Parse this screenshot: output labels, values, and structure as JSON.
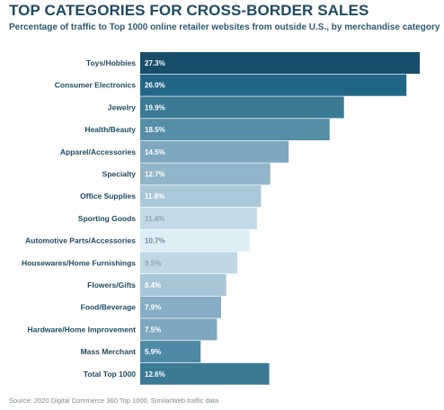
{
  "chart_data": {
    "type": "bar",
    "orientation": "horizontal",
    "title": "TOP CATEGORIES FOR CROSS-BORDER SALES",
    "subtitle": "Percentage of traffic to Top 1000 online retailer websites from outside U.S., by merchandise category",
    "categories": [
      "Toys/Hobbies",
      "Consumer Electronics",
      "Jewelry",
      "Health/Beauty",
      "Apparel/Accessories",
      "Specialty",
      "Office Supplies",
      "Sporting Goods",
      "Automotive Parts/Accessories",
      "Housewares/Home Furnishings",
      "Flowers/Gifts",
      "Food/Beverage",
      "Hardware/Home Improvement",
      "Mass Merchant",
      "Total Top 1000"
    ],
    "values": [
      27.3,
      26.0,
      19.9,
      18.5,
      14.5,
      12.7,
      11.8,
      11.4,
      10.7,
      9.5,
      8.4,
      7.9,
      7.5,
      5.9,
      12.6
    ],
    "value_labels": [
      "27.3%",
      "26.0%",
      "19.9%",
      "18.5%",
      "14.5%",
      "12.7%",
      "11.8%",
      "11.4%",
      "10.7%",
      "9.5%",
      "8.4%",
      "7.9%",
      "7.5%",
      "5.9%",
      "12.6%"
    ],
    "xlim": [
      0,
      27.3
    ],
    "grid": false,
    "legend": "none",
    "bar_colors": [
      "#174c6a",
      "#226687",
      "#3b7a95",
      "#568ea8",
      "#7ea8bf",
      "#91b5c9",
      "#a9c8d9",
      "#c2d9e7",
      "#ddeef7",
      "#c0d8e6",
      "#a8c6d8",
      "#86adc3",
      "#7ea8bf",
      "#4e8aa6",
      "#3b7a95"
    ],
    "value_label_colors": [
      "#ffffff",
      "#ffffff",
      "#ffffff",
      "#ffffff",
      "#ffffff",
      "#ffffff",
      "#ffffff",
      "#8aa4b3",
      "#6e8c9c",
      "#8aa4b3",
      "#ffffff",
      "#ffffff",
      "#ffffff",
      "#ffffff",
      "#ffffff"
    ]
  },
  "source_note": "Source: 2020 Digital Commerce 360 Top 1000, SimilarWeb traffic data"
}
